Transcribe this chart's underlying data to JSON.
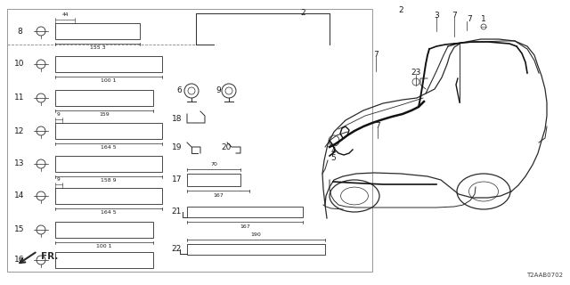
{
  "bg_color": "#ffffff",
  "diagram_code": "T2AAB0702",
  "line_color": "#2a2a2a",
  "text_color": "#1a1a1a"
}
